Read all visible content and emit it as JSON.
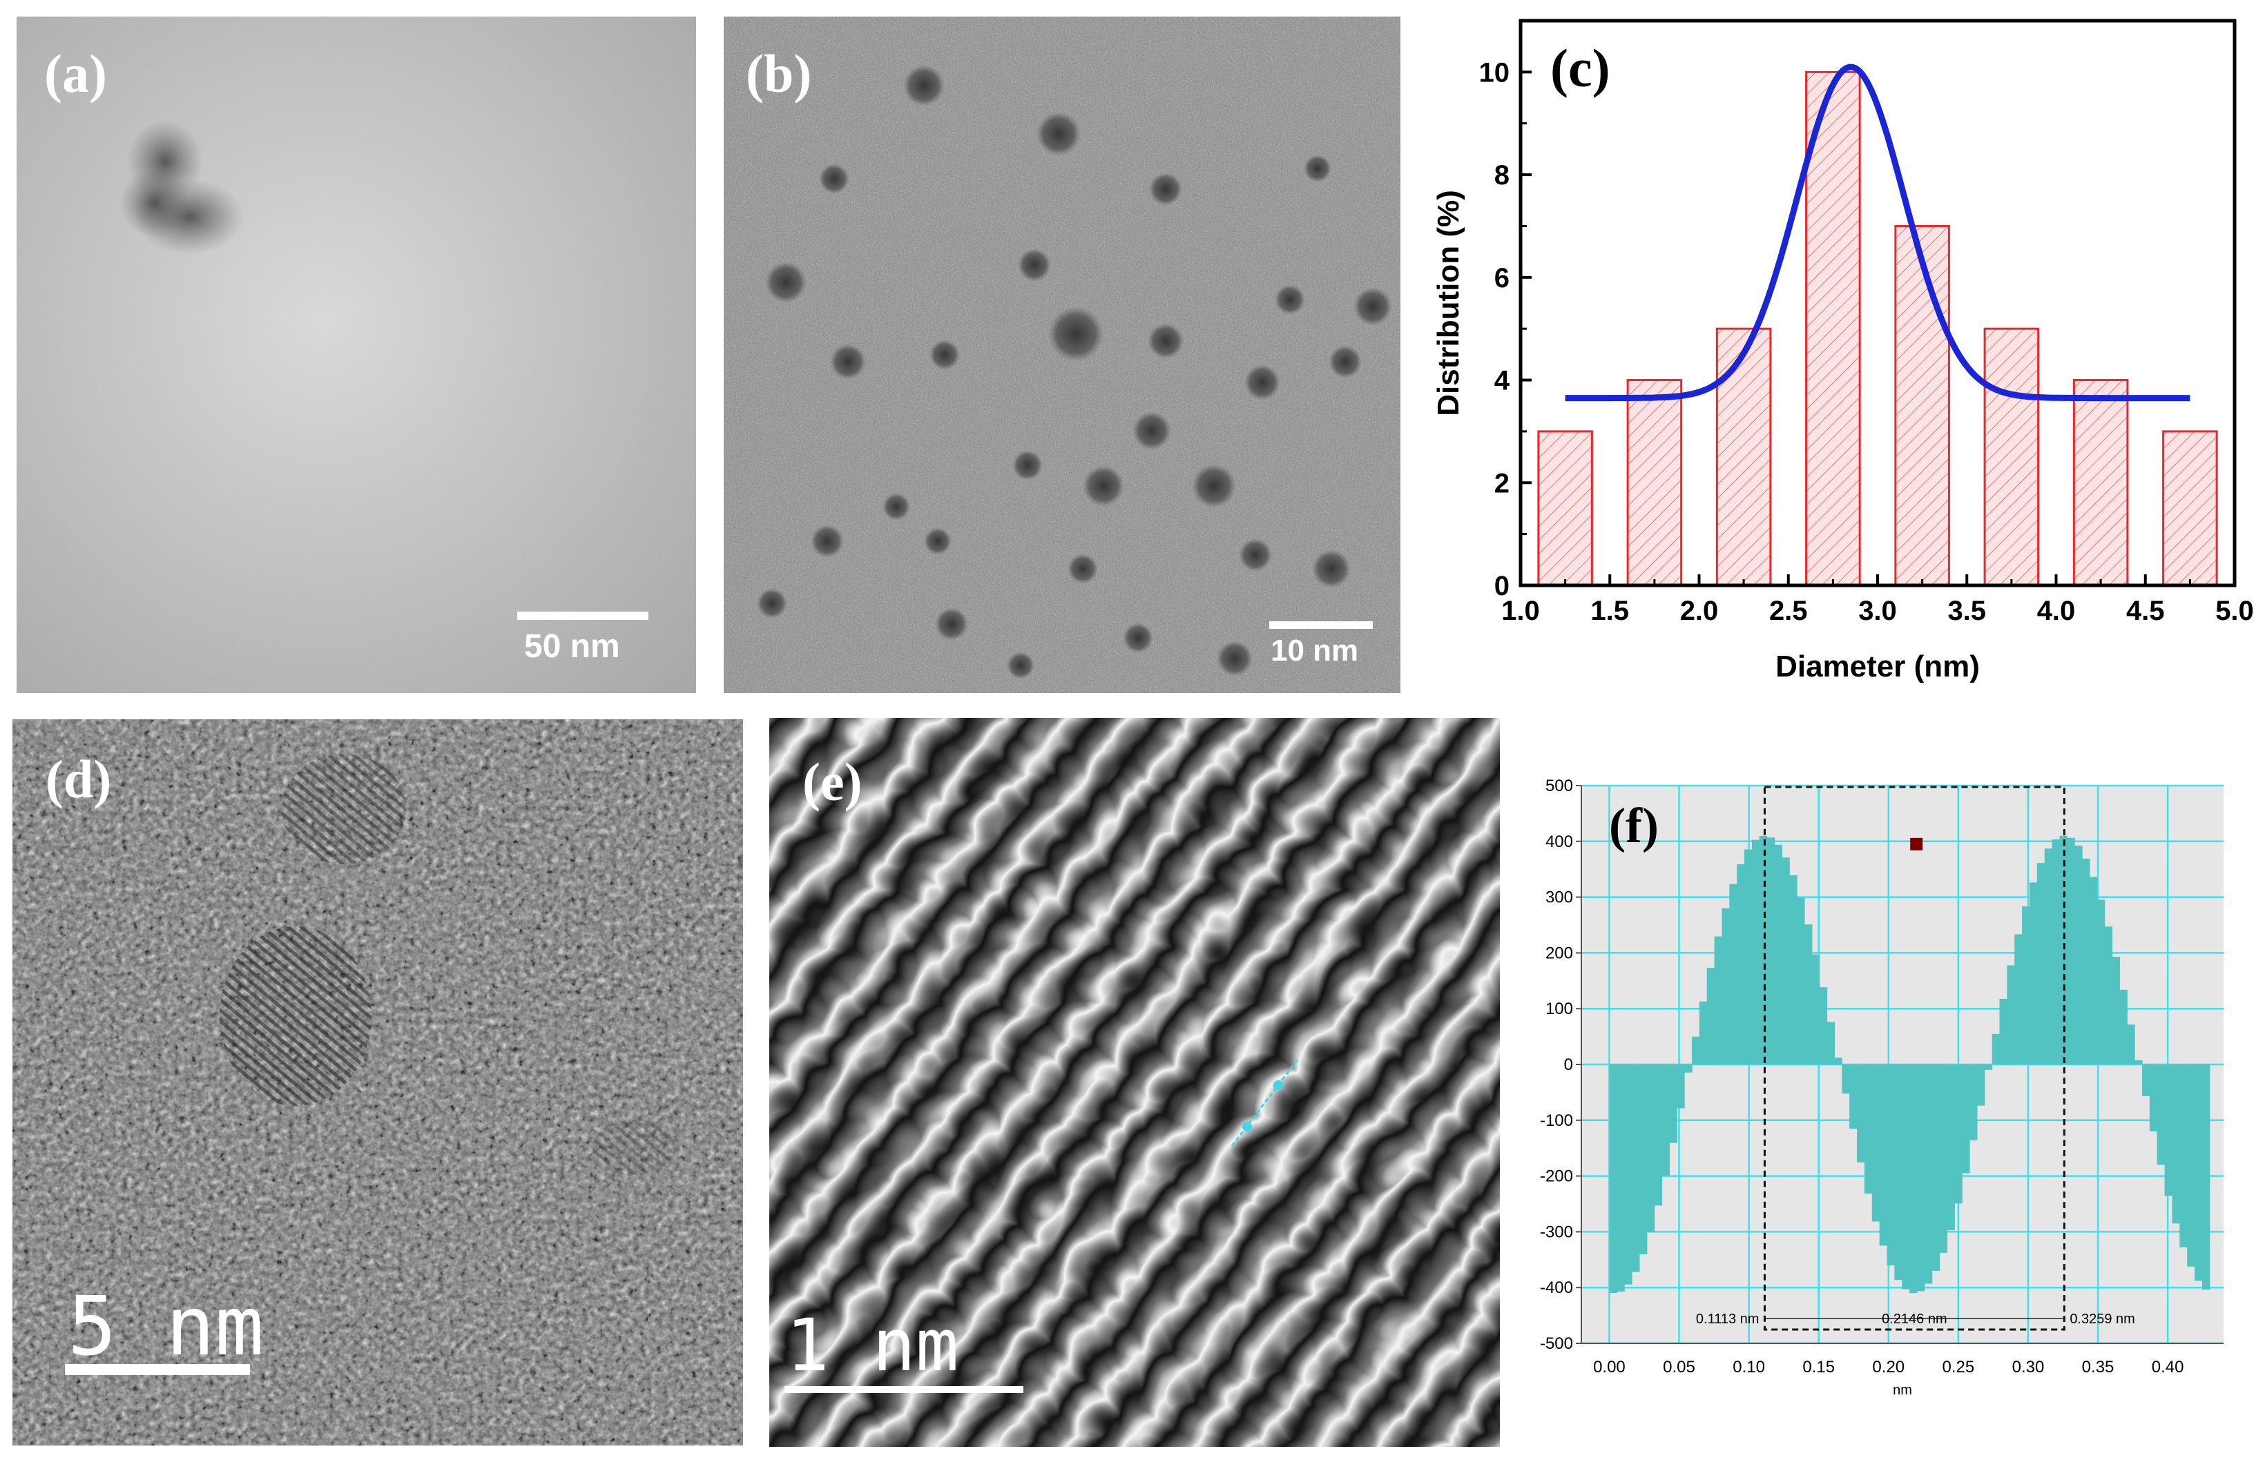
{
  "figure": {
    "panels": {
      "a": {
        "label": "(a)",
        "scale_bar": "50 nm"
      },
      "b": {
        "label": "(b)",
        "scale_bar": "10 nm"
      },
      "c": {
        "label": "(c)"
      },
      "d": {
        "label": "(d)",
        "scale_bar": "5 nm"
      },
      "e": {
        "label": "(e)",
        "scale_bar": "1 nm"
      },
      "f": {
        "label": "(f)"
      }
    }
  },
  "chart_data": [
    {
      "panel": "c",
      "type": "bar",
      "xlabel": "Diameter (nm)",
      "ylabel": "Distribution (%)",
      "xlim": [
        1.0,
        5.0
      ],
      "ylim": [
        0,
        11
      ],
      "xticks": [
        "1.0",
        "1.5",
        "2.0",
        "2.5",
        "3.0",
        "3.5",
        "4.0",
        "4.5",
        "5.0"
      ],
      "yticks": [
        "0",
        "2",
        "4",
        "6",
        "8",
        "10"
      ],
      "bin_width": 0.3,
      "bin_centers": [
        1.25,
        1.75,
        2.25,
        2.75,
        3.25,
        3.75,
        4.25,
        4.75
      ],
      "values": [
        3,
        4,
        5,
        10,
        7,
        5,
        4,
        3
      ],
      "bar_face": "#fde4e4",
      "bar_edge": "#e8282b",
      "fit": {
        "type": "gaussian",
        "center": 2.85,
        "peak": 10.1,
        "baseline": 3.65,
        "sigma": 0.3,
        "x_range": [
          1.25,
          4.75
        ],
        "color": "#1a25d6"
      },
      "grid": false
    },
    {
      "panel": "f",
      "type": "area",
      "xlabel": "nm",
      "xlim": [
        -0.02,
        0.44
      ],
      "ylim": [
        -500,
        500
      ],
      "xticks": [
        "0.00",
        "0.05",
        "0.10",
        "0.15",
        "0.20",
        "0.25",
        "0.30",
        "0.35",
        "0.40"
      ],
      "yticks": [
        "500",
        "400",
        "300",
        "200",
        "100",
        "0",
        "-100",
        "-200",
        "-300",
        "-400",
        "-500"
      ],
      "profile": {
        "amplitude": 410,
        "period": 0.2146,
        "peak_x": 0.1113,
        "x_range": [
          0.0,
          0.43
        ]
      },
      "fill_color": "#52c3c0",
      "grid": true,
      "grid_color": "#3fe0ee",
      "background": "#e6e6e6",
      "markers": [
        0.1113,
        0.3259
      ],
      "annotations": [
        "0.1113 nm",
        "0.2146 nm",
        "0.3259 nm"
      ]
    }
  ]
}
